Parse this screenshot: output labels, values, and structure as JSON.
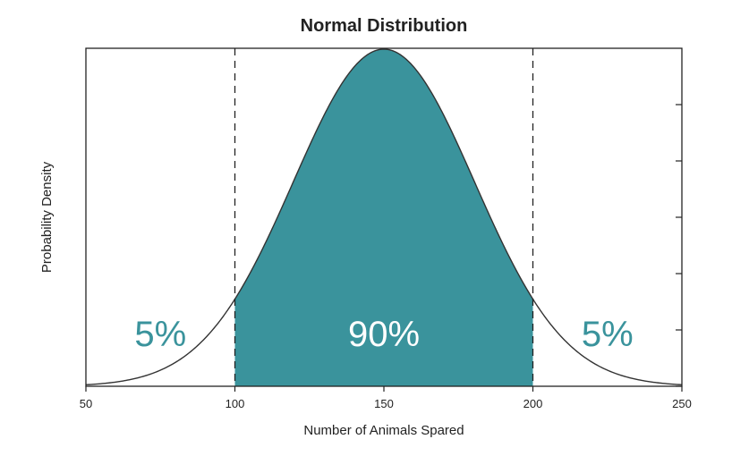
{
  "chart_data": {
    "type": "area",
    "title": "Normal Distribution",
    "xlabel": "Number of Animals Spared",
    "ylabel": "Probability Density",
    "xlim": [
      50,
      250
    ],
    "x_ticks": [
      50,
      100,
      150,
      200,
      250
    ],
    "x_tick_labels": [
      "50",
      "100",
      "150",
      "200",
      "250"
    ],
    "y_tick_count": 6,
    "y_tick_labels_shown": false,
    "grid": false,
    "distribution": {
      "mean": 150,
      "std_dev": 30.4
    },
    "shaded_range": [
      100,
      200
    ],
    "cutoff_lines": [
      100,
      200
    ],
    "regions": [
      {
        "range": [
          50,
          100
        ],
        "label": "5%",
        "value": 5
      },
      {
        "range": [
          100,
          200
        ],
        "label": "90%",
        "value": 90
      },
      {
        "range": [
          200,
          250
        ],
        "label": "5%",
        "value": 5
      }
    ],
    "colors": {
      "fill": "#3a939c",
      "curve": "#333333",
      "outer_label": "#3a939c",
      "inner_label": "#ffffff",
      "axes": "#222222"
    }
  }
}
